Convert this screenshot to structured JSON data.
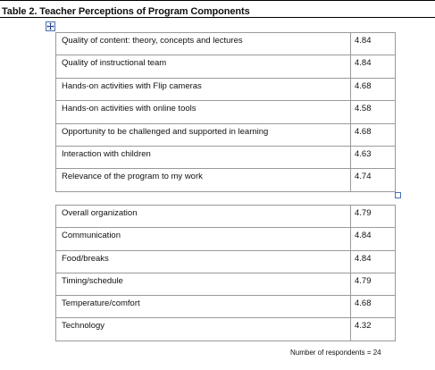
{
  "caption": "Table 2. Teacher Perceptions of Program Components",
  "icons": {
    "move_handle": "move-arrows-icon",
    "resize_handle": "resize-handle-icon"
  },
  "table_top": {
    "rows": [
      {
        "label": "Quality of content: theory, concepts and lectures",
        "value": "4.84"
      },
      {
        "label": "Quality of instructional team",
        "value": "4.84"
      },
      {
        "label": "Hands-on activities with Flip cameras",
        "value": "4.68"
      },
      {
        "label": "Hands-on activities with online tools",
        "value": "4.58"
      },
      {
        "label": "Opportunity to be challenged and supported in learning",
        "value": "4.68"
      },
      {
        "label": "Interaction with children",
        "value": "4.63"
      },
      {
        "label": "Relevance of the program to my work",
        "value": "4.74"
      }
    ]
  },
  "table_bottom": {
    "rows": [
      {
        "label": "Overall organization",
        "value": "4.79"
      },
      {
        "label": "Communication",
        "value": "4.84"
      },
      {
        "label": "Food/breaks",
        "value": "4.84"
      },
      {
        "label": "Timing/schedule",
        "value": "4.79"
      },
      {
        "label": "Temperature/comfort",
        "value": "4.68"
      },
      {
        "label": "Technology",
        "value": "4.32"
      }
    ]
  },
  "footnote": "Number of respondents = 24"
}
